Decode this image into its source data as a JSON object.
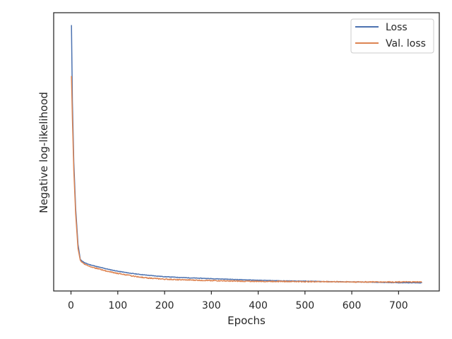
{
  "chart_data": {
    "type": "line",
    "title": "",
    "xlabel": "Epochs",
    "ylabel": "Negative log-likelihood",
    "xlim": [
      -37,
      787
    ],
    "x_ticks": [
      0,
      100,
      200,
      300,
      400,
      500,
      600,
      700
    ],
    "y_tick_labels_shown": false,
    "grid": false,
    "legend_position": "top-right",
    "series": [
      {
        "name": "Loss",
        "color": "#4c72b0",
        "points": [
          [
            1,
            100.0
          ],
          [
            3,
            72.0
          ],
          [
            6,
            50.0
          ],
          [
            10,
            33.0
          ],
          [
            15,
            20.0
          ],
          [
            20,
            14.4
          ],
          [
            25,
            13.8
          ],
          [
            30,
            13.2
          ],
          [
            40,
            12.6
          ],
          [
            60,
            11.7
          ],
          [
            80,
            10.9
          ],
          [
            100,
            10.2
          ],
          [
            130,
            9.4
          ],
          [
            160,
            8.8
          ],
          [
            200,
            8.2
          ],
          [
            250,
            7.8
          ],
          [
            300,
            7.5
          ],
          [
            350,
            7.2
          ],
          [
            400,
            6.9
          ],
          [
            450,
            6.7
          ],
          [
            500,
            6.6
          ],
          [
            550,
            6.4
          ],
          [
            600,
            6.3
          ],
          [
            650,
            6.2
          ],
          [
            700,
            6.0
          ],
          [
            750,
            6.0
          ]
        ]
      },
      {
        "name": "Val. loss",
        "color": "#dd8452",
        "points": [
          [
            1,
            81.4
          ],
          [
            3,
            66.0
          ],
          [
            6,
            47.0
          ],
          [
            10,
            31.0
          ],
          [
            15,
            18.5
          ],
          [
            20,
            14.1
          ],
          [
            25,
            13.3
          ],
          [
            30,
            12.7
          ],
          [
            40,
            12.0
          ],
          [
            60,
            11.0
          ],
          [
            80,
            10.1
          ],
          [
            100,
            9.4
          ],
          [
            130,
            8.5
          ],
          [
            160,
            7.8
          ],
          [
            200,
            7.3
          ],
          [
            250,
            7.0
          ],
          [
            300,
            6.8
          ],
          [
            350,
            6.6
          ],
          [
            400,
            6.5
          ],
          [
            450,
            6.5
          ],
          [
            500,
            6.4
          ],
          [
            550,
            6.4
          ],
          [
            600,
            6.3
          ],
          [
            650,
            6.3
          ],
          [
            700,
            6.3
          ],
          [
            750,
            6.3
          ]
        ]
      }
    ]
  }
}
